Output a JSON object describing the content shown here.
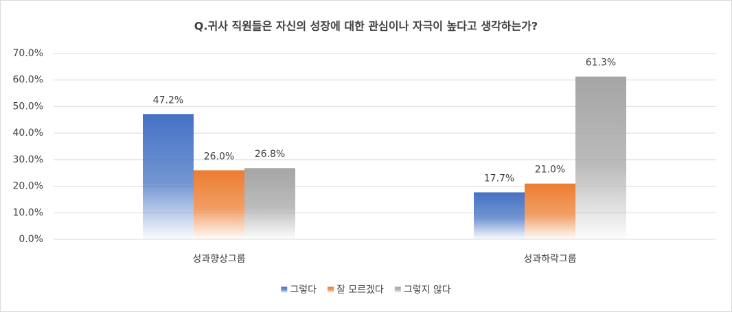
{
  "chart_data": {
    "type": "bar",
    "title": "Q.귀사 직원들은 자신의 성장에 대한 관심이나 자극이 높다고 생각하는가?",
    "categories": [
      "성과향상그룹",
      "성과하락그룹"
    ],
    "series": [
      {
        "name": "그렇다",
        "color": "#4472c4",
        "values": [
          47.2,
          17.7
        ],
        "value_labels": [
          "47.2%",
          "17.7%"
        ]
      },
      {
        "name": "잘 모르겠다",
        "color": "#ed7d31",
        "values": [
          26.0,
          21.0
        ],
        "value_labels": [
          "26.0%",
          "21.0%"
        ]
      },
      {
        "name": "그렇지 않다",
        "color": "#a5a5a5",
        "values": [
          26.8,
          61.3
        ],
        "value_labels": [
          "26.8%",
          "61.3%"
        ]
      }
    ],
    "ylim": [
      0,
      70
    ],
    "yticks": [
      {
        "value": 0,
        "label": "0.0%"
      },
      {
        "value": 10,
        "label": "10.0%"
      },
      {
        "value": 20,
        "label": "20.0%"
      },
      {
        "value": 30,
        "label": "30.0%"
      },
      {
        "value": 40,
        "label": "40.0%"
      },
      {
        "value": 50,
        "label": "50.0%"
      },
      {
        "value": 60,
        "label": "60.0%"
      },
      {
        "value": 70,
        "label": "70.0%"
      }
    ],
    "grid": true,
    "legend": "bottom"
  }
}
